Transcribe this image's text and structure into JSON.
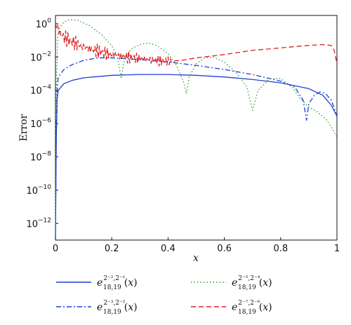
{
  "chart_data": {
    "type": "line",
    "title": "",
    "xlabel": "x",
    "ylabel": "Error",
    "xlim": [
      0,
      1
    ],
    "ylim_log10": [
      -13,
      0.5
    ],
    "yscale": "log",
    "grid": false,
    "legend_position": "bottom",
    "x_ticks": [
      "0",
      "0.2",
      "0.4",
      "0.6",
      "0.8",
      "1"
    ],
    "y_ticks": [
      {
        "base": "10",
        "exp": "0"
      },
      {
        "base": "10",
        "exp": "−2"
      },
      {
        "base": "10",
        "exp": "−4"
      },
      {
        "base": "10",
        "exp": "−6"
      },
      {
        "base": "10",
        "exp": "−8"
      },
      {
        "base": "10",
        "exp": "−10"
      },
      {
        "base": "10",
        "exp": "−12"
      }
    ],
    "series": [
      {
        "name": "e18,19^{2^{−2},2^{−1}}(x)",
        "label_sub": "18,19",
        "label_sup": "2⁻²,2⁻¹",
        "color": "#1f3fd6",
        "dash": "solid",
        "points": [
          [
            0.0,
            -13.0
          ],
          [
            0.003,
            -7.0
          ],
          [
            0.006,
            -4.5
          ],
          [
            0.01,
            -4.0
          ],
          [
            0.03,
            -3.6
          ],
          [
            0.06,
            -3.4
          ],
          [
            0.1,
            -3.25
          ],
          [
            0.2,
            -3.1
          ],
          [
            0.3,
            -3.05
          ],
          [
            0.4,
            -3.05
          ],
          [
            0.5,
            -3.1
          ],
          [
            0.6,
            -3.2
          ],
          [
            0.7,
            -3.35
          ],
          [
            0.8,
            -3.55
          ],
          [
            0.9,
            -3.9
          ],
          [
            0.95,
            -4.3
          ],
          [
            0.98,
            -4.9
          ],
          [
            0.995,
            -5.4
          ],
          [
            1.0,
            -5.5
          ]
        ]
      },
      {
        "name": "e18,19^{2^{−3},2^{−2}}(x)",
        "label_sub": "18,19",
        "label_sup": "2⁻³,2⁻²",
        "color": "#1f3fd6",
        "dash": "dashdot",
        "points": [
          [
            0.0,
            -13.0
          ],
          [
            0.003,
            -6.0
          ],
          [
            0.006,
            -4.0
          ],
          [
            0.01,
            -3.2
          ],
          [
            0.03,
            -2.75
          ],
          [
            0.06,
            -2.45
          ],
          [
            0.1,
            -2.2
          ],
          [
            0.15,
            -2.05
          ],
          [
            0.2,
            -2.05
          ],
          [
            0.3,
            -2.15
          ],
          [
            0.4,
            -2.3
          ],
          [
            0.5,
            -2.5
          ],
          [
            0.6,
            -2.75
          ],
          [
            0.7,
            -3.05
          ],
          [
            0.8,
            -3.45
          ],
          [
            0.85,
            -3.8
          ],
          [
            0.88,
            -4.6
          ],
          [
            0.892,
            -5.8
          ],
          [
            0.9,
            -4.8
          ],
          [
            0.92,
            -4.3
          ],
          [
            0.94,
            -4.1
          ],
          [
            0.96,
            -4.2
          ],
          [
            0.98,
            -4.6
          ],
          [
            0.995,
            -5.3
          ],
          [
            1.0,
            -5.6
          ]
        ]
      },
      {
        "name": "e18,19^{2^{−5},2^{−4}}(x)",
        "label_sub": "18,19",
        "label_sup": "2⁻⁵,2⁻⁴",
        "color": "#2e9a2e",
        "dash": "dotted",
        "points": [
          [
            0.0,
            -13.0
          ],
          [
            0.003,
            -4.0
          ],
          [
            0.008,
            -0.8
          ],
          [
            0.015,
            -0.2
          ],
          [
            0.03,
            0.1
          ],
          [
            0.05,
            0.25
          ],
          [
            0.08,
            0.2
          ],
          [
            0.12,
            -0.1
          ],
          [
            0.16,
            -0.6
          ],
          [
            0.2,
            -1.3
          ],
          [
            0.22,
            -2.0
          ],
          [
            0.234,
            -3.3
          ],
          [
            0.245,
            -2.1
          ],
          [
            0.27,
            -1.5
          ],
          [
            0.3,
            -1.25
          ],
          [
            0.33,
            -1.15
          ],
          [
            0.36,
            -1.3
          ],
          [
            0.4,
            -1.8
          ],
          [
            0.43,
            -2.5
          ],
          [
            0.455,
            -3.5
          ],
          [
            0.465,
            -4.2
          ],
          [
            0.475,
            -3.2
          ],
          [
            0.5,
            -2.4
          ],
          [
            0.53,
            -2.05
          ],
          [
            0.56,
            -2.0
          ],
          [
            0.6,
            -2.3
          ],
          [
            0.64,
            -2.9
          ],
          [
            0.68,
            -3.8
          ],
          [
            0.7,
            -5.2
          ],
          [
            0.72,
            -4.0
          ],
          [
            0.76,
            -3.3
          ],
          [
            0.8,
            -3.3
          ],
          [
            0.84,
            -3.8
          ],
          [
            0.87,
            -4.5
          ],
          [
            0.9,
            -5.0
          ],
          [
            0.93,
            -5.3
          ],
          [
            0.96,
            -5.7
          ],
          [
            0.98,
            -6.2
          ],
          [
            1.0,
            -6.8
          ]
        ]
      },
      {
        "name": "e18,19^{2^{−7},2^{−6}}(x)",
        "label_sub": "18,19",
        "label_sup": "2⁻⁷,2⁻⁶",
        "color": "#e02020",
        "dash": "dashed",
        "noisy_end": 0.42,
        "points": [
          [
            0.0,
            0.0
          ],
          [
            0.01,
            -0.3
          ],
          [
            0.02,
            -0.7
          ],
          [
            0.05,
            -1.0
          ],
          [
            0.1,
            -1.4
          ],
          [
            0.15,
            -1.65
          ],
          [
            0.2,
            -1.85
          ],
          [
            0.25,
            -2.0
          ],
          [
            0.3,
            -2.1
          ],
          [
            0.35,
            -2.2
          ],
          [
            0.4,
            -2.25
          ],
          [
            0.45,
            -2.2
          ],
          [
            0.5,
            -2.05
          ],
          [
            0.6,
            -1.85
          ],
          [
            0.7,
            -1.6
          ],
          [
            0.8,
            -1.45
          ],
          [
            0.9,
            -1.3
          ],
          [
            0.95,
            -1.25
          ],
          [
            0.98,
            -1.3
          ],
          [
            0.99,
            -1.6
          ],
          [
            1.0,
            -2.4
          ]
        ]
      }
    ]
  }
}
